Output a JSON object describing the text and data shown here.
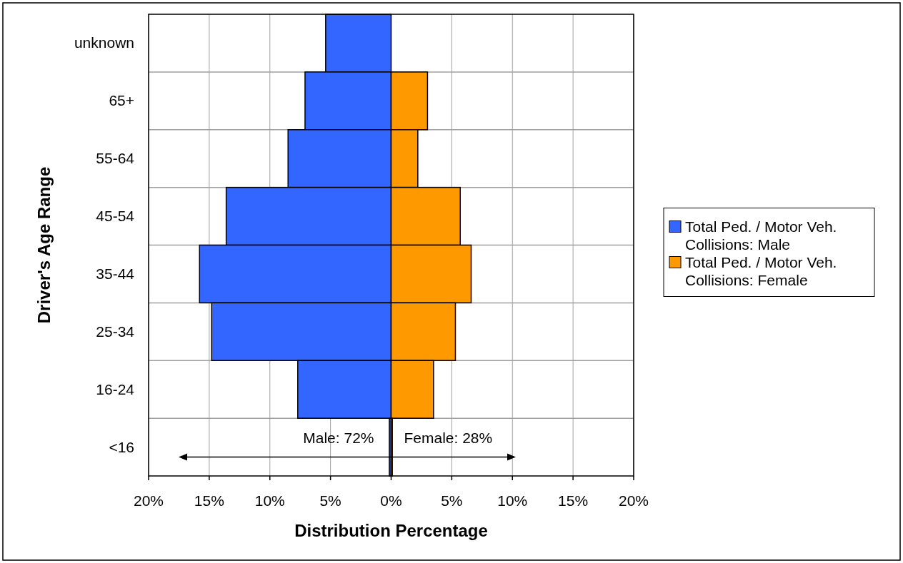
{
  "chart_data": {
    "type": "bar",
    "orientation": "horizontal",
    "stacked": true,
    "categories": [
      "unknown",
      "65+",
      "55-64",
      "45-54",
      "35-44",
      "25-34",
      "16-24",
      "<16"
    ],
    "series": [
      {
        "name": "Total Ped. / Motor Veh. Collisions: Male",
        "color": "#3366ff",
        "values": [
          -5.4,
          -7.1,
          -8.5,
          -13.6,
          -15.8,
          -14.8,
          -7.7,
          -0.15
        ]
      },
      {
        "name": "Total Ped. / Motor Veh. Collisions: Female",
        "color": "#ff9900",
        "values": [
          0,
          3.0,
          2.2,
          5.7,
          6.6,
          5.3,
          3.5,
          0.1
        ]
      }
    ],
    "xlim": [
      -20,
      20
    ],
    "xticks": [
      {
        "value": -20,
        "label": "20%"
      },
      {
        "value": -15,
        "label": "15%"
      },
      {
        "value": -10,
        "label": "10%"
      },
      {
        "value": -5,
        "label": "5%"
      },
      {
        "value": 0,
        "label": "0%"
      },
      {
        "value": 5,
        "label": "5%"
      },
      {
        "value": 10,
        "label": "10%"
      },
      {
        "value": 15,
        "label": "15%"
      },
      {
        "value": 20,
        "label": "20%"
      }
    ],
    "xlabel": "Distribution Percentage",
    "ylabel": "Driver's Age Range",
    "annotations": [
      "Male: 72%",
      "Female: 28%"
    ],
    "grid": true,
    "legend": "right"
  }
}
